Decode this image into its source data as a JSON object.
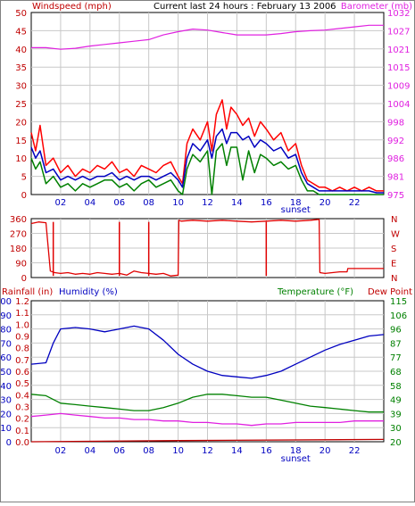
{
  "title": "Current last 24 hours : February 13 2006",
  "chart_data": [
    {
      "type": "line",
      "label_left": "Windspeed (mph)",
      "label_right": "Barometer (mb)",
      "left_ticks": [
        0,
        5,
        10,
        15,
        20,
        25,
        30,
        35,
        40,
        45,
        50
      ],
      "right_ticks": [
        975,
        981,
        986,
        992,
        998,
        1004,
        1009,
        1015,
        1021,
        1027,
        1032
      ],
      "x_ticks": [
        "02",
        "04",
        "06",
        "08",
        "10",
        "12",
        "14",
        "16",
        "18",
        "20",
        "22"
      ],
      "x_marker": "sunset",
      "grid": true,
      "colors": {
        "gust": "#ff0000",
        "avg": "#0000c0",
        "wind": "#008000",
        "barometer": "#e020e0"
      },
      "series": [
        {
          "key": "barometer",
          "axis": "right",
          "ylim": [
            975,
            1032
          ],
          "x": [
            0,
            1,
            2,
            3,
            4,
            5,
            6,
            7,
            8,
            9,
            10,
            11,
            12,
            13,
            14,
            15,
            16,
            17,
            18,
            19,
            20,
            21,
            22,
            23,
            24
          ],
          "values": [
            1021,
            1021,
            1020.5,
            1020.8,
            1021.5,
            1022,
            1022.5,
            1023,
            1023.5,
            1025,
            1026,
            1026.8,
            1026.5,
            1025.7,
            1025,
            1025,
            1025,
            1025.4,
            1026,
            1026.3,
            1026.5,
            1027,
            1027.5,
            1028,
            1028
          ]
        },
        {
          "key": "gust",
          "axis": "left",
          "ylim": [
            0,
            50
          ],
          "x": [
            0,
            0.3,
            0.6,
            1,
            1.5,
            2,
            2.5,
            3,
            3.5,
            4,
            4.5,
            5,
            5.5,
            6,
            6.5,
            7,
            7.5,
            8,
            8.5,
            9,
            9.5,
            10,
            10.3,
            10.6,
            11,
            11.5,
            12,
            12.3,
            12.6,
            13,
            13.3,
            13.6,
            14,
            14.4,
            14.8,
            15.2,
            15.6,
            16,
            16.5,
            17,
            17.5,
            18,
            18.4,
            18.8,
            19.2,
            19.6,
            20,
            20.5,
            21,
            21.5,
            22,
            22.5,
            23,
            23.5,
            24
          ],
          "values": [
            17,
            12,
            19,
            8,
            10,
            6,
            8,
            5,
            7,
            6,
            8,
            7,
            9,
            6,
            7,
            5,
            8,
            7,
            6,
            8,
            9,
            5,
            3,
            14,
            18,
            15,
            20,
            12,
            22,
            26,
            18,
            24,
            22,
            19,
            21,
            16,
            20,
            18,
            15,
            17,
            12,
            14,
            8,
            4,
            3,
            2,
            2,
            1,
            2,
            1,
            2,
            1,
            2,
            1,
            1
          ]
        },
        {
          "key": "avg",
          "axis": "left",
          "ylim": [
            0,
            50
          ],
          "x": [
            0,
            0.3,
            0.6,
            1,
            1.5,
            2,
            2.5,
            3,
            3.5,
            4,
            4.5,
            5,
            5.5,
            6,
            6.5,
            7,
            7.5,
            8,
            8.5,
            9,
            9.5,
            10,
            10.3,
            10.6,
            11,
            11.5,
            12,
            12.3,
            12.6,
            13,
            13.3,
            13.6,
            14,
            14.4,
            14.8,
            15.2,
            15.6,
            16,
            16.5,
            17,
            17.5,
            18,
            18.4,
            18.8,
            19.2,
            19.6,
            20,
            20.5,
            21,
            21.5,
            22,
            22.5,
            23,
            23.5,
            24
          ],
          "values": [
            13,
            10,
            12,
            6,
            7,
            4,
            5,
            4,
            5,
            4,
            5,
            5,
            6,
            4,
            5,
            4,
            5,
            5,
            4,
            5,
            6,
            4,
            2,
            10,
            14,
            12,
            15,
            10,
            16,
            18,
            14,
            17,
            17,
            15,
            16,
            13,
            15,
            14,
            12,
            13,
            10,
            11,
            6,
            3,
            2,
            1,
            1,
            1,
            1,
            1,
            1,
            1,
            1,
            0.5,
            0.5
          ]
        },
        {
          "key": "wind",
          "axis": "left",
          "ylim": [
            0,
            50
          ],
          "x": [
            0,
            0.3,
            0.6,
            1,
            1.5,
            2,
            2.5,
            3,
            3.5,
            4,
            4.5,
            5,
            5.5,
            6,
            6.5,
            7,
            7.5,
            8,
            8.5,
            9,
            9.5,
            10,
            10.3,
            10.6,
            11,
            11.5,
            12,
            12.3,
            12.6,
            13,
            13.3,
            13.6,
            14,
            14.4,
            14.8,
            15.2,
            15.6,
            16,
            16.5,
            17,
            17.5,
            18,
            18.4,
            18.8,
            19.2,
            19.6,
            20,
            20.5,
            21,
            21.5,
            22,
            22.5,
            23,
            23.5,
            24
          ],
          "values": [
            10,
            7,
            9,
            3,
            5,
            2,
            3,
            1,
            3,
            2,
            3,
            4,
            4,
            2,
            3,
            1,
            3,
            4,
            2,
            3,
            4,
            1,
            0,
            7,
            11,
            9,
            12,
            0,
            12,
            14,
            8,
            13,
            13,
            4,
            12,
            6,
            11,
            10,
            8,
            9,
            7,
            8,
            4,
            1,
            1,
            0,
            0,
            0,
            0,
            0,
            0,
            0,
            0,
            0,
            0
          ]
        }
      ]
    },
    {
      "type": "line",
      "left_ticks": [
        0,
        90,
        180,
        270,
        360
      ],
      "right_labels": [
        "N",
        "W",
        "S",
        "E",
        "N"
      ],
      "x_ticks": [],
      "grid": true,
      "ylim": [
        0,
        360
      ],
      "color": "#e00000",
      "spikes_down": [
        1.5,
        6,
        8,
        16
      ],
      "x": [
        0,
        0.5,
        1,
        1.3,
        1.6,
        2,
        2.5,
        3,
        3.5,
        4,
        4.5,
        5,
        5.5,
        6,
        6.5,
        7,
        7.5,
        8,
        8.5,
        9,
        9.5,
        10,
        10.05,
        10.2,
        11,
        12,
        13,
        14,
        15,
        16,
        17,
        18,
        19,
        19.6,
        19.65,
        20,
        21,
        21.5,
        21.55,
        22,
        23,
        24
      ],
      "values": [
        330,
        340,
        335,
        40,
        30,
        25,
        30,
        20,
        25,
        20,
        30,
        25,
        20,
        25,
        15,
        40,
        30,
        25,
        20,
        25,
        10,
        15,
        350,
        345,
        350,
        345,
        350,
        345,
        340,
        345,
        350,
        345,
        350,
        355,
        30,
        25,
        35,
        35,
        55,
        55,
        55,
        55
      ]
    },
    {
      "type": "line",
      "label_left_1": "Rainfall (in)",
      "label_left_2": "Humidity (%)",
      "label_right_1": "Temperature (°F)",
      "label_right_2": "Dew Point",
      "humidity_ticks": [
        0,
        10,
        20,
        30,
        40,
        50,
        60,
        70,
        80,
        90,
        100
      ],
      "rain_ticks": [
        "0.0",
        "0.1",
        "0.2",
        "0.3",
        "0.4",
        "0.5",
        "0.6",
        "0.7",
        "0.8",
        "0.9",
        "1.0",
        "1.1",
        "1.2"
      ],
      "temp_ticks": [
        20,
        30,
        39,
        49,
        58,
        68,
        77,
        87,
        96,
        106,
        115
      ],
      "x_ticks": [
        "02",
        "04",
        "06",
        "08",
        "10",
        "12",
        "14",
        "16",
        "18",
        "20",
        "22"
      ],
      "x_marker": "sunset",
      "grid": true,
      "colors": {
        "humidity": "#0000c0",
        "temperature": "#008000",
        "dewpoint": "#e020e0",
        "rain": "#c00000"
      },
      "series": [
        {
          "key": "humidity",
          "axis": "humidity",
          "ylim": [
            0,
            100
          ],
          "x": [
            0,
            1,
            1.5,
            2,
            3,
            4,
            5,
            6,
            7,
            8,
            9,
            10,
            11,
            12,
            13,
            14,
            15,
            16,
            17,
            18,
            19,
            20,
            21,
            22,
            23,
            24
          ],
          "values": [
            55,
            56,
            70,
            80,
            81,
            80,
            78,
            80,
            82,
            80,
            72,
            62,
            55,
            50,
            47,
            46,
            45,
            47,
            50,
            55,
            60,
            65,
            69,
            72,
            75,
            76
          ]
        },
        {
          "key": "temperature",
          "axis": "temp",
          "ylim": [
            20,
            115
          ],
          "x": [
            0,
            1,
            2,
            3,
            4,
            5,
            6,
            7,
            8,
            9,
            10,
            11,
            12,
            13,
            14,
            15,
            16,
            17,
            18,
            19,
            20,
            21,
            22,
            23,
            24
          ],
          "values": [
            52,
            51,
            46,
            45,
            44,
            43,
            42,
            41,
            41,
            43,
            46,
            50,
            52,
            52,
            51,
            50,
            50,
            48,
            46,
            44,
            43,
            42,
            41,
            40,
            40
          ]
        },
        {
          "key": "dewpoint",
          "axis": "temp",
          "ylim": [
            20,
            115
          ],
          "x": [
            0,
            1,
            2,
            3,
            4,
            5,
            6,
            7,
            8,
            9,
            10,
            11,
            12,
            13,
            14,
            15,
            16,
            17,
            18,
            19,
            20,
            21,
            22,
            23,
            24
          ],
          "values": [
            37,
            38,
            39,
            38,
            37,
            36,
            36,
            35,
            35,
            34,
            34,
            33,
            33,
            32,
            32,
            31,
            32,
            32,
            33,
            33,
            33,
            33,
            34,
            34,
            34
          ]
        },
        {
          "key": "rain",
          "axis": "rain",
          "ylim": [
            0,
            1.2
          ],
          "x": [
            0,
            10,
            24
          ],
          "values": [
            0.0,
            0.01,
            0.02
          ]
        }
      ]
    }
  ]
}
